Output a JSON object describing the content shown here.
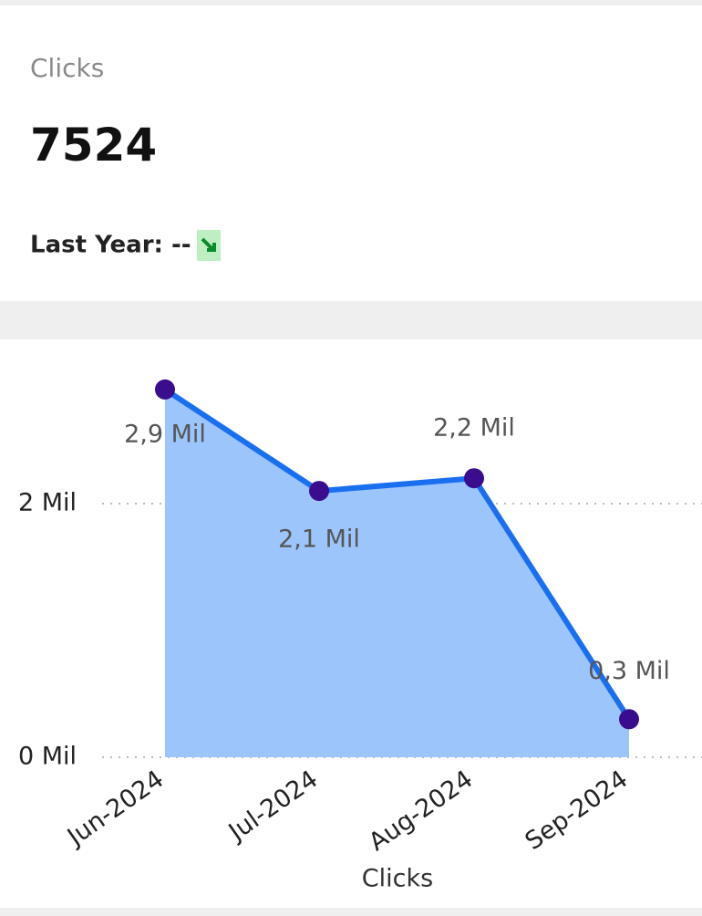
{
  "kpi": {
    "label": "Clicks",
    "value": "7524",
    "comparison": "Last Year: --"
  },
  "chart_data": {
    "type": "area",
    "x_label": "Clicks",
    "categories": [
      "Jun-2024",
      "Jul-2024",
      "Aug-2024",
      "Sep-2024"
    ],
    "values": [
      2900000,
      2100000,
      2200000,
      300000
    ],
    "value_labels": [
      "2,9 Mil",
      "2,1 Mil",
      "2,2 Mil",
      "0,3 Mil"
    ],
    "color": "#1a6ff0",
    "area_color": "#9cc5fb",
    "marker_color": "#3a0c8e",
    "ylim": [
      0,
      3000000
    ],
    "yticks": [
      {
        "value": 0,
        "label": "0 Mil"
      },
      {
        "value": 2000000,
        "label": "2 Mil"
      }
    ],
    "grid": true
  }
}
